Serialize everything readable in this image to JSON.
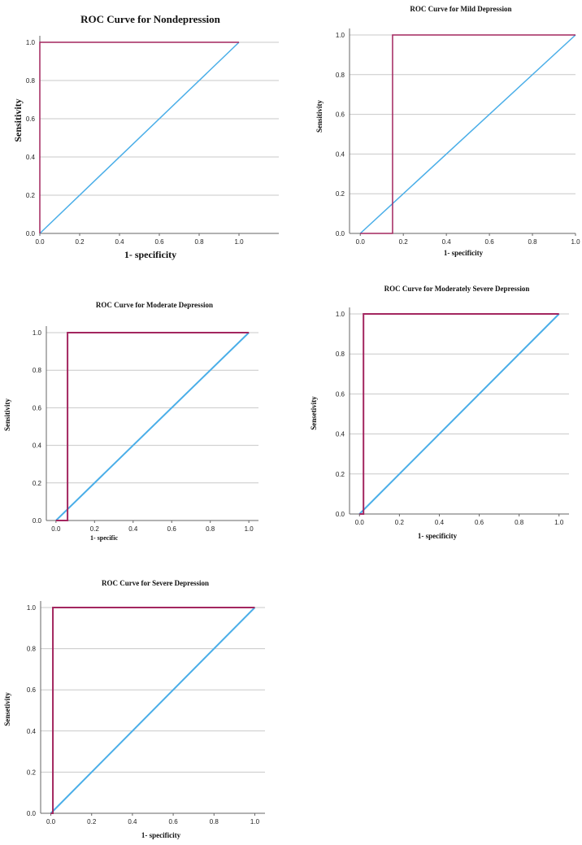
{
  "figure": {
    "description_title": ""
  },
  "colors": {
    "roc": "#A3265F",
    "reference": "#4AAEE8",
    "grid": "#C8C8C8",
    "axis": "#666666"
  },
  "chart_data": [
    {
      "type": "line",
      "title": "ROC Curve for Nondepression",
      "xlabel": "1- specificity",
      "ylabel": "Sensitivity",
      "xlim": [
        0,
        1.2
      ],
      "ylim": [
        0,
        1
      ],
      "xticks": [
        "0.0",
        "0.2",
        "0.4",
        "0.6",
        "0.8",
        "1.0"
      ],
      "yticks": [
        "0.0",
        "0.2",
        "0.4",
        "0.6",
        "0.8",
        "1.0"
      ],
      "series": [
        {
          "name": "ROC curve",
          "x": [
            0,
            0,
            1
          ],
          "y": [
            0,
            1,
            1
          ]
        },
        {
          "name": "Reference line",
          "x": [
            0,
            1
          ],
          "y": [
            0,
            1
          ]
        }
      ]
    },
    {
      "type": "line",
      "title": "ROC Curve for Mild Depression",
      "xlabel": "1- specificity",
      "ylabel": "Sensitivity",
      "xlim": [
        -0.05,
        1.0
      ],
      "ylim": [
        0,
        1
      ],
      "xticks": [
        "0.0",
        "0.2",
        "0.4",
        "0.6",
        "0.8",
        "1.0"
      ],
      "yticks": [
        "0.0",
        "0.2",
        "0.4",
        "0.6",
        "0.8",
        "1.0"
      ],
      "series": [
        {
          "name": "ROC curve",
          "x": [
            0,
            0.15,
            0.15,
            1
          ],
          "y": [
            0,
            0,
            1,
            1
          ]
        },
        {
          "name": "Reference line",
          "x": [
            0,
            1
          ],
          "y": [
            0,
            1
          ]
        }
      ]
    },
    {
      "type": "line",
      "title": "ROC Curve for Moderate Depression",
      "xlabel": "1- specific",
      "ylabel": "Sensitivity",
      "xlim": [
        -0.05,
        1.05
      ],
      "ylim": [
        0,
        1
      ],
      "xticks": [
        "0.0",
        "0.2",
        "0.4",
        "0.6",
        "0.8",
        "1.0"
      ],
      "yticks": [
        "0.0",
        "0.2",
        "0.4",
        "0.6",
        "0.8",
        "1.0"
      ],
      "series": [
        {
          "name": "ROC curve",
          "x": [
            0,
            0.06,
            0.06,
            1
          ],
          "y": [
            0,
            0,
            1,
            1
          ]
        },
        {
          "name": "Reference line",
          "x": [
            0,
            1
          ],
          "y": [
            0,
            1
          ]
        }
      ]
    },
    {
      "type": "line",
      "title": "ROC Curve for Moderately Severe Depression",
      "xlabel": "1- specificity",
      "ylabel": "Sensetivity",
      "xlim": [
        -0.05,
        1.05
      ],
      "ylim": [
        0,
        1
      ],
      "xticks": [
        "0.0",
        "0.2",
        "0.4",
        "0.6",
        "0.8",
        "1.0"
      ],
      "yticks": [
        "0.0",
        "0.2",
        "0.4",
        "0.6",
        "0.8",
        "1.0"
      ],
      "series": [
        {
          "name": "ROC curve",
          "x": [
            0,
            0.02,
            0.02,
            1
          ],
          "y": [
            0,
            0,
            1,
            1
          ]
        },
        {
          "name": "Reference line",
          "x": [
            0,
            1
          ],
          "y": [
            0,
            1
          ]
        }
      ]
    },
    {
      "type": "line",
      "title": "ROC Curve for Severe Depression",
      "xlabel": "1- specificity",
      "ylabel": "Sensetivity",
      "xlim": [
        -0.05,
        1.05
      ],
      "ylim": [
        0,
        1
      ],
      "xticks": [
        "0.0",
        "0.2",
        "0.4",
        "0.6",
        "0.8",
        "1.0"
      ],
      "yticks": [
        "0.0",
        "0.2",
        "0.4",
        "0.6",
        "0.8",
        "1.0"
      ],
      "series": [
        {
          "name": "ROC curve",
          "x": [
            0,
            0.01,
            0.01,
            1
          ],
          "y": [
            0,
            0,
            1,
            1
          ]
        },
        {
          "name": "Reference line",
          "x": [
            0,
            1
          ],
          "y": [
            0,
            1
          ]
        }
      ]
    }
  ]
}
